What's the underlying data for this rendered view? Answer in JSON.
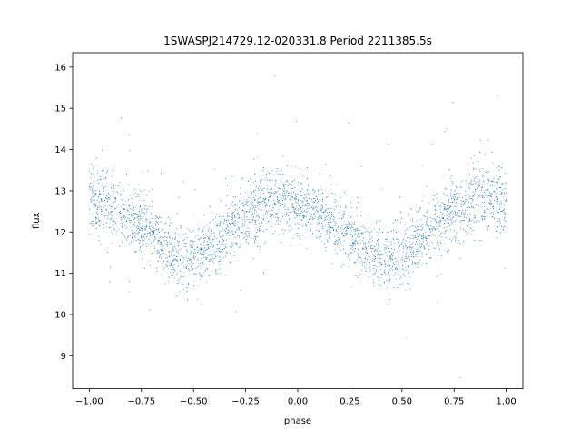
{
  "chart_data": {
    "type": "scatter",
    "title": "1SWASPJ214729.12-020331.8 Period 2211385.5s",
    "xlabel": "phase",
    "ylabel": "flux",
    "xlim": [
      -1.08,
      1.08
    ],
    "ylim": [
      8.2,
      16.35
    ],
    "xticks": [
      -1.0,
      -0.75,
      -0.5,
      -0.25,
      0.0,
      0.25,
      0.5,
      0.75,
      1.0
    ],
    "xtick_labels": [
      "−1.00",
      "−0.75",
      "−0.50",
      "−0.25",
      "0.00",
      "0.25",
      "0.50",
      "0.75",
      "1.00"
    ],
    "yticks": [
      9,
      10,
      11,
      12,
      13,
      14,
      15,
      16
    ],
    "ytick_labels": [
      "9",
      "10",
      "11",
      "12",
      "13",
      "14",
      "15",
      "16"
    ],
    "grid": false,
    "point_color": "#1f77b4",
    "series": [
      {
        "x": [
          -0.98,
          -0.94,
          -0.9,
          -0.86,
          -0.82,
          -0.78,
          -0.74,
          -0.7,
          -0.66,
          -0.62,
          -0.58,
          -0.54,
          -0.5,
          -0.46,
          -0.42,
          -0.38,
          -0.34,
          -0.3,
          -0.26,
          -0.22,
          -0.18,
          -0.14,
          -0.1,
          -0.06,
          -0.02,
          0.02,
          0.06,
          0.1,
          0.14,
          0.18,
          0.22,
          0.26,
          0.3,
          0.34,
          0.38,
          0.42,
          0.46,
          0.5,
          0.54,
          0.58,
          0.62,
          0.66,
          0.7,
          0.74,
          0.78,
          0.82,
          0.86,
          0.9,
          0.94,
          0.98
        ],
        "y": [
          12.8,
          12.7,
          12.6,
          12.5,
          12.4,
          12.3,
          12.2,
          12.0,
          11.8,
          11.6,
          11.5,
          11.4,
          11.4,
          11.5,
          11.6,
          11.8,
          12.0,
          12.2,
          12.4,
          12.5,
          12.6,
          12.7,
          12.8,
          12.8,
          12.7,
          12.6,
          12.5,
          12.4,
          12.3,
          12.2,
          12.0,
          11.9,
          11.7,
          11.5,
          11.4,
          11.3,
          11.4,
          11.5,
          11.6,
          11.8,
          12.0,
          12.2,
          12.4,
          12.5,
          12.6,
          12.7,
          12.8,
          12.8,
          12.8,
          12.7
        ],
        "spread": [
          0.7,
          0.7,
          0.7,
          0.65,
          0.65,
          0.6,
          0.65,
          0.6,
          0.6,
          0.6,
          0.6,
          0.6,
          0.6,
          0.6,
          0.6,
          0.6,
          0.65,
          0.6,
          0.6,
          0.6,
          0.6,
          0.65,
          0.65,
          0.65,
          0.6,
          0.6,
          0.6,
          0.6,
          0.6,
          0.6,
          0.6,
          0.6,
          0.6,
          0.6,
          0.6,
          0.6,
          0.6,
          0.6,
          0.6,
          0.6,
          0.65,
          0.65,
          0.65,
          0.65,
          0.65,
          0.7,
          0.7,
          0.7,
          0.7,
          0.7
        ]
      }
    ]
  }
}
